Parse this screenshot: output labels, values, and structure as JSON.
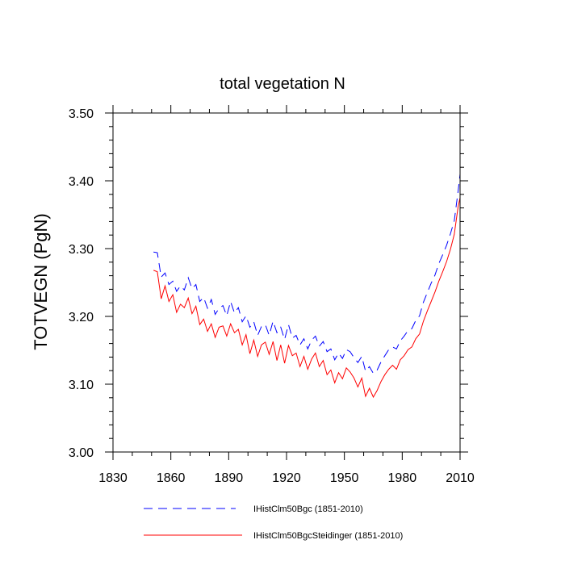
{
  "chart_data": {
    "type": "line",
    "title": "total vegetation N",
    "xlabel": "",
    "ylabel": "TOTVEGN  (PgN)",
    "xlim": [
      1830,
      2010
    ],
    "ylim": [
      3.0,
      3.5
    ],
    "x_ticks": [
      "1830",
      "1860",
      "1890",
      "1920",
      "1950",
      "1980",
      "2010"
    ],
    "y_ticks": [
      "3.00",
      "3.10",
      "3.20",
      "3.30",
      "3.40",
      "3.50"
    ],
    "grid": false,
    "legend_position": "bottom",
    "series": [
      {
        "name": "IHistClm50Bgc (1851-2010)",
        "color": "#0000ff",
        "style": "dashed",
        "x": [
          1851,
          1853,
          1855,
          1857,
          1859,
          1861,
          1863,
          1865,
          1867,
          1869,
          1871,
          1873,
          1875,
          1877,
          1879,
          1881,
          1883,
          1885,
          1887,
          1889,
          1891,
          1893,
          1895,
          1897,
          1899,
          1901,
          1903,
          1905,
          1907,
          1909,
          1911,
          1913,
          1915,
          1917,
          1919,
          1921,
          1923,
          1925,
          1927,
          1929,
          1931,
          1933,
          1935,
          1937,
          1939,
          1941,
          1943,
          1945,
          1947,
          1949,
          1951,
          1953,
          1955,
          1957,
          1959,
          1961,
          1963,
          1965,
          1967,
          1969,
          1971,
          1973,
          1975,
          1977,
          1979,
          1981,
          1983,
          1985,
          1987,
          1989,
          1991,
          1993,
          1995,
          1997,
          1999,
          2001,
          2003,
          2005,
          2007,
          2009,
          2010
        ],
        "y": [
          3.295,
          3.294,
          3.258,
          3.264,
          3.247,
          3.252,
          3.237,
          3.245,
          3.239,
          3.257,
          3.241,
          3.247,
          3.222,
          3.228,
          3.212,
          3.225,
          3.203,
          3.212,
          3.216,
          3.201,
          3.222,
          3.205,
          3.213,
          3.192,
          3.201,
          3.184,
          3.192,
          3.172,
          3.185,
          3.188,
          3.172,
          3.193,
          3.176,
          3.184,
          3.166,
          3.188,
          3.168,
          3.172,
          3.158,
          3.167,
          3.152,
          3.165,
          3.171,
          3.156,
          3.163,
          3.148,
          3.152,
          3.136,
          3.146,
          3.138,
          3.151,
          3.148,
          3.139,
          3.132,
          3.141,
          3.119,
          3.126,
          3.116,
          3.121,
          3.133,
          3.142,
          3.151,
          3.155,
          3.152,
          3.164,
          3.171,
          3.179,
          3.182,
          3.194,
          3.201,
          3.221,
          3.235,
          3.249,
          3.261,
          3.278,
          3.291,
          3.305,
          3.322,
          3.341,
          3.385,
          3.41
        ]
      },
      {
        "name": "IHistClm50BgcSteidinger (1851-2010)",
        "color": "#ff0000",
        "style": "solid",
        "x": [
          1851,
          1853,
          1855,
          1857,
          1859,
          1861,
          1863,
          1865,
          1867,
          1869,
          1871,
          1873,
          1875,
          1877,
          1879,
          1881,
          1883,
          1885,
          1887,
          1889,
          1891,
          1893,
          1895,
          1897,
          1899,
          1901,
          1903,
          1905,
          1907,
          1909,
          1911,
          1913,
          1915,
          1917,
          1919,
          1921,
          1923,
          1925,
          1927,
          1929,
          1931,
          1933,
          1935,
          1937,
          1939,
          1941,
          1943,
          1945,
          1947,
          1949,
          1951,
          1953,
          1955,
          1957,
          1959,
          1961,
          1963,
          1965,
          1967,
          1969,
          1971,
          1973,
          1975,
          1977,
          1979,
          1981,
          1983,
          1985,
          1987,
          1989,
          1991,
          1993,
          1995,
          1997,
          1999,
          2001,
          2003,
          2005,
          2007,
          2009,
          2010
        ],
        "y": [
          3.268,
          3.266,
          3.226,
          3.245,
          3.222,
          3.232,
          3.206,
          3.218,
          3.213,
          3.227,
          3.204,
          3.215,
          3.188,
          3.196,
          3.178,
          3.189,
          3.169,
          3.184,
          3.186,
          3.171,
          3.189,
          3.176,
          3.181,
          3.158,
          3.173,
          3.145,
          3.165,
          3.141,
          3.158,
          3.162,
          3.144,
          3.163,
          3.135,
          3.158,
          3.131,
          3.157,
          3.142,
          3.146,
          3.126,
          3.141,
          3.122,
          3.137,
          3.146,
          3.126,
          3.135,
          3.114,
          3.121,
          3.102,
          3.117,
          3.108,
          3.124,
          3.118,
          3.109,
          3.096,
          3.109,
          3.082,
          3.094,
          3.081,
          3.091,
          3.104,
          3.114,
          3.122,
          3.128,
          3.122,
          3.136,
          3.142,
          3.151,
          3.155,
          3.167,
          3.174,
          3.193,
          3.208,
          3.222,
          3.236,
          3.252,
          3.266,
          3.281,
          3.299,
          3.321,
          3.362,
          3.375
        ]
      }
    ]
  }
}
